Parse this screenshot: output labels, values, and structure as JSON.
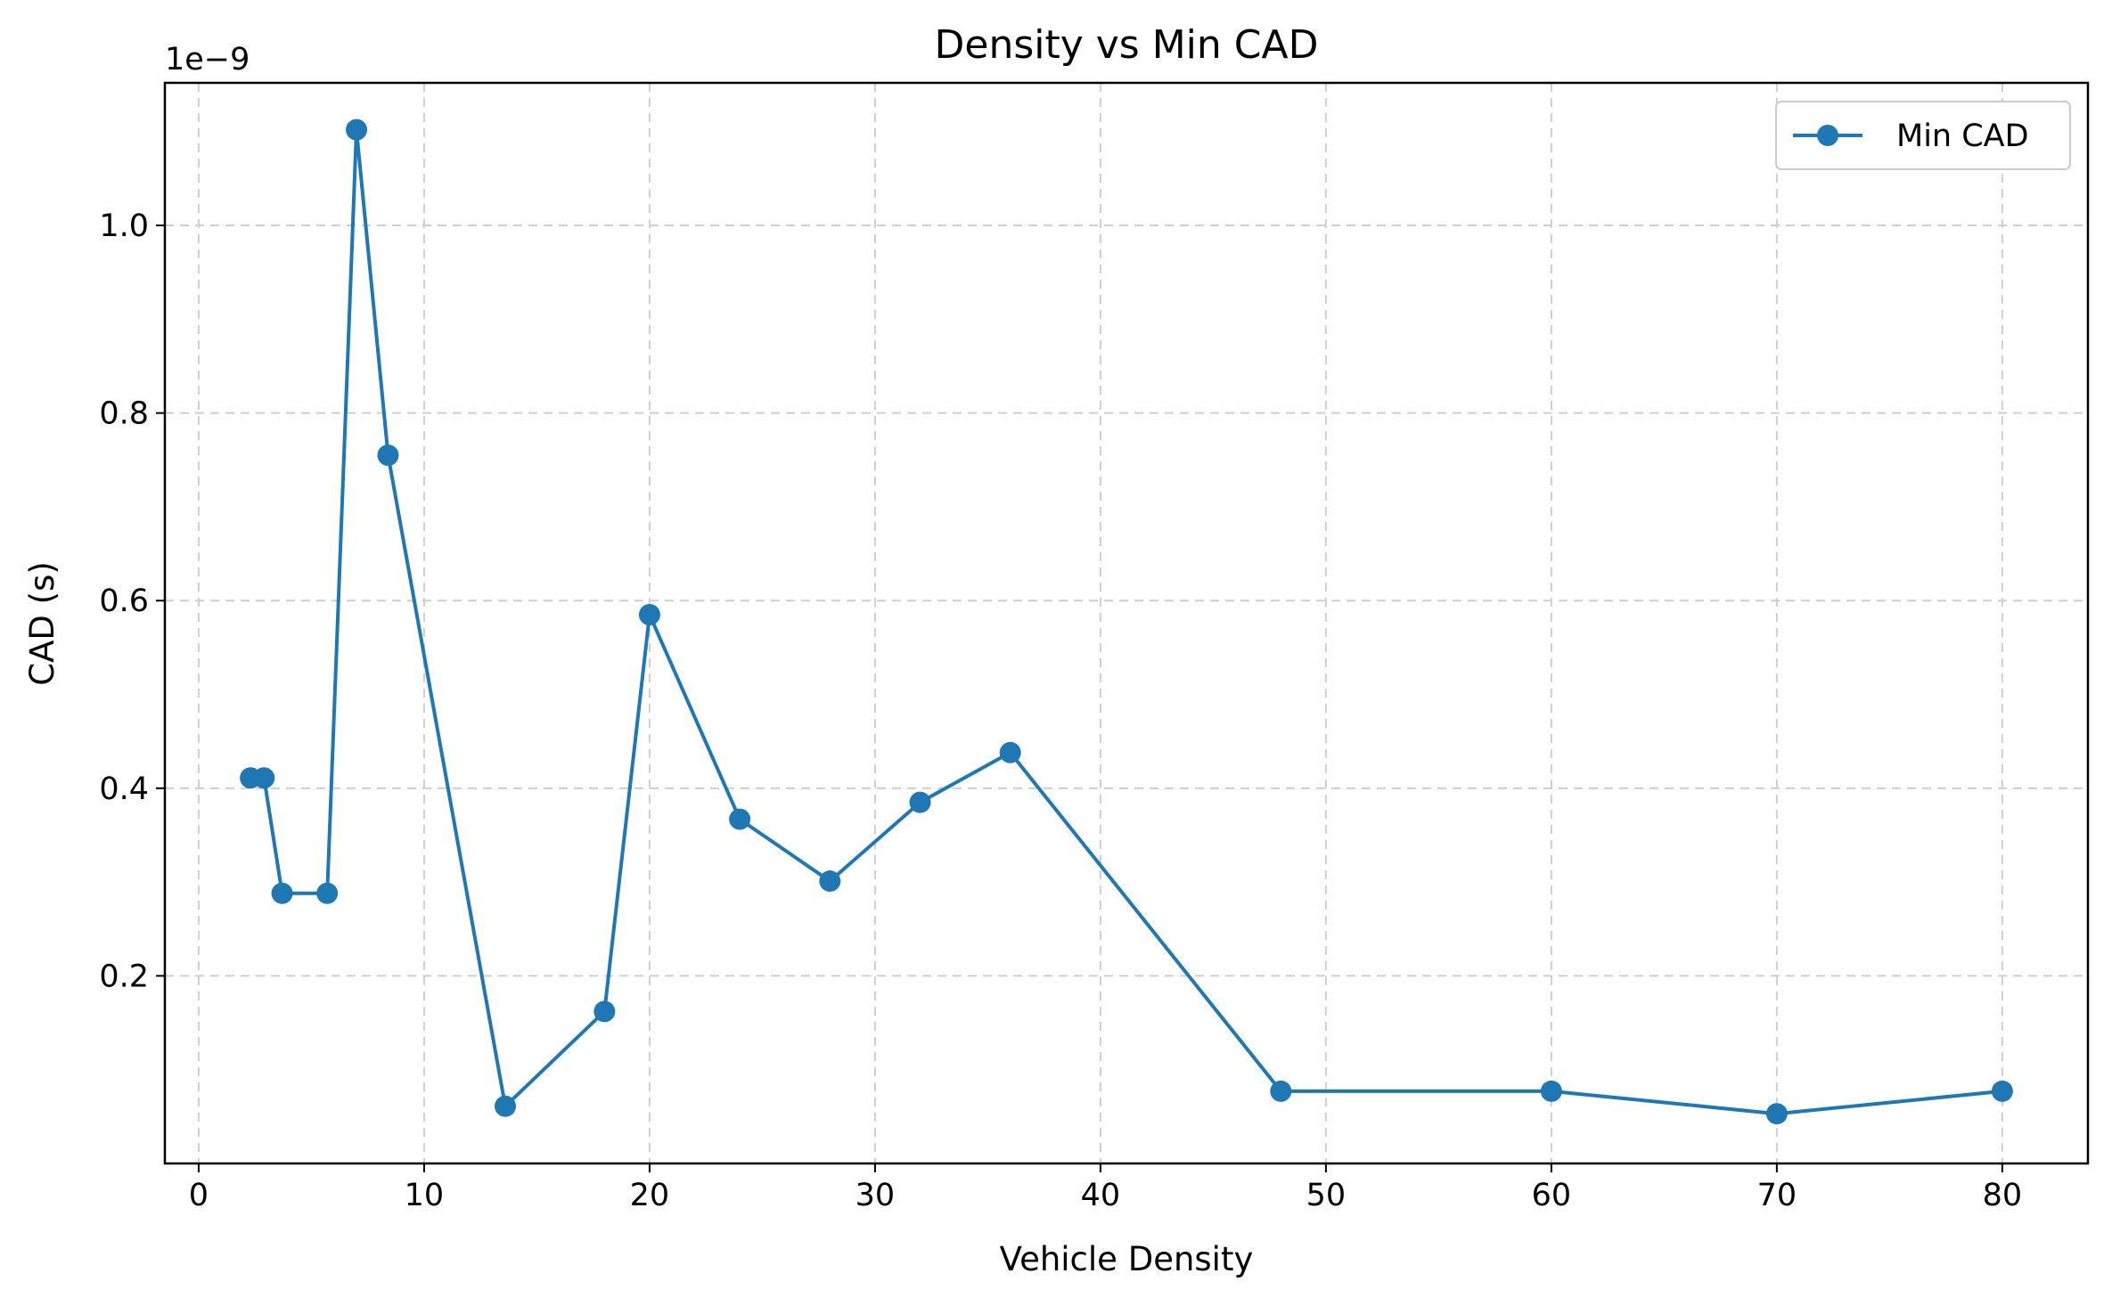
{
  "chart_data": {
    "type": "line",
    "title": "Density vs Min CAD",
    "xlabel": "Vehicle Density",
    "ylabel": "CAD (s)",
    "y_offset_label": "1e−9",
    "xlim": [
      -1.5,
      83.8
    ],
    "ylim": [
      0.0,
      1.152
    ],
    "x_ticks": [
      0,
      10,
      20,
      30,
      40,
      50,
      60,
      70,
      80
    ],
    "x_tick_labels": [
      "0",
      "10",
      "20",
      "30",
      "40",
      "50",
      "60",
      "70",
      "80"
    ],
    "y_ticks": [
      0.2,
      0.4,
      0.6,
      0.8,
      1.0
    ],
    "y_tick_labels": [
      "0.2",
      "0.4",
      "0.6",
      "0.8",
      "1.0"
    ],
    "grid": true,
    "legend": "top-right",
    "series": [
      {
        "name": "Min CAD",
        "color": "#1f77b4",
        "marker": "circle",
        "x": [
          2.3,
          2.9,
          3.7,
          5.7,
          7.0,
          8.4,
          13.6,
          18.0,
          20.0,
          24.0,
          28.0,
          32.0,
          36.0,
          48.0,
          60.0,
          70.0,
          80.0
        ],
        "y": [
          0.411,
          0.411,
          0.288,
          0.288,
          1.102,
          0.755,
          0.061,
          0.162,
          0.585,
          0.367,
          0.301,
          0.385,
          0.438,
          0.077,
          0.077,
          0.053,
          0.077
        ]
      }
    ]
  }
}
